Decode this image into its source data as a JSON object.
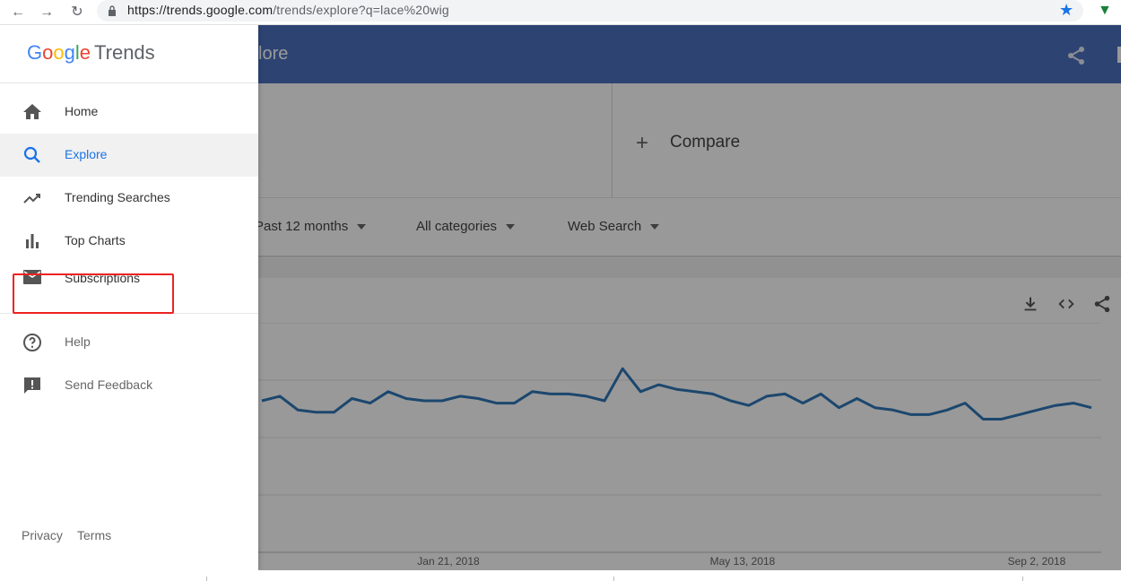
{
  "browser": {
    "url_base": "https://trends.google.com",
    "url_path": "/trends/explore?q=lace%20wig"
  },
  "header": {
    "title_partial": "lore"
  },
  "search": {
    "compare_label": "Compare"
  },
  "filters": {
    "time_range": "Past 12 months",
    "category": "All categories",
    "search_type": "Web Search"
  },
  "drawer": {
    "logo_google": [
      "G",
      "o",
      "o",
      "g",
      "l",
      "e"
    ],
    "logo_trends": "Trends",
    "primary_items": [
      {
        "label": "Home",
        "icon": "home-icon"
      },
      {
        "label": "Explore",
        "icon": "search-icon",
        "active": true
      },
      {
        "label": "Trending Searches",
        "icon": "trending-up-icon"
      },
      {
        "label": "Top Charts",
        "icon": "bar-chart-icon"
      },
      {
        "label": "Subscriptions",
        "icon": "mail-icon"
      }
    ],
    "secondary_items": [
      {
        "label": "Help",
        "icon": "help-icon"
      },
      {
        "label": "Send Feedback",
        "icon": "feedback-icon"
      }
    ],
    "footer": {
      "privacy": "Privacy",
      "terms": "Terms"
    }
  },
  "colors": {
    "header_blue": "#4c72c0",
    "line_blue": "#2f77b8",
    "active_blue": "#1a73e8",
    "highlight_red": "#e22222"
  },
  "chart_data": {
    "type": "line",
    "x_tick_labels": [
      "Jan 21, 2018",
      "May 13, 2018",
      "Sep 2, 2018"
    ],
    "series": [
      {
        "values": [
          66,
          68,
          62,
          61,
          61,
          67,
          65,
          70,
          67,
          66,
          66,
          68,
          67,
          65,
          65,
          70,
          69,
          69,
          68,
          66,
          80,
          70,
          73,
          71,
          70,
          69,
          66,
          64,
          68,
          69,
          65,
          69,
          63,
          67,
          63,
          62,
          60,
          60,
          62,
          65,
          58,
          58,
          60,
          62,
          64,
          65,
          63
        ]
      }
    ],
    "ylim": [
      0,
      100
    ],
    "grid": true
  }
}
